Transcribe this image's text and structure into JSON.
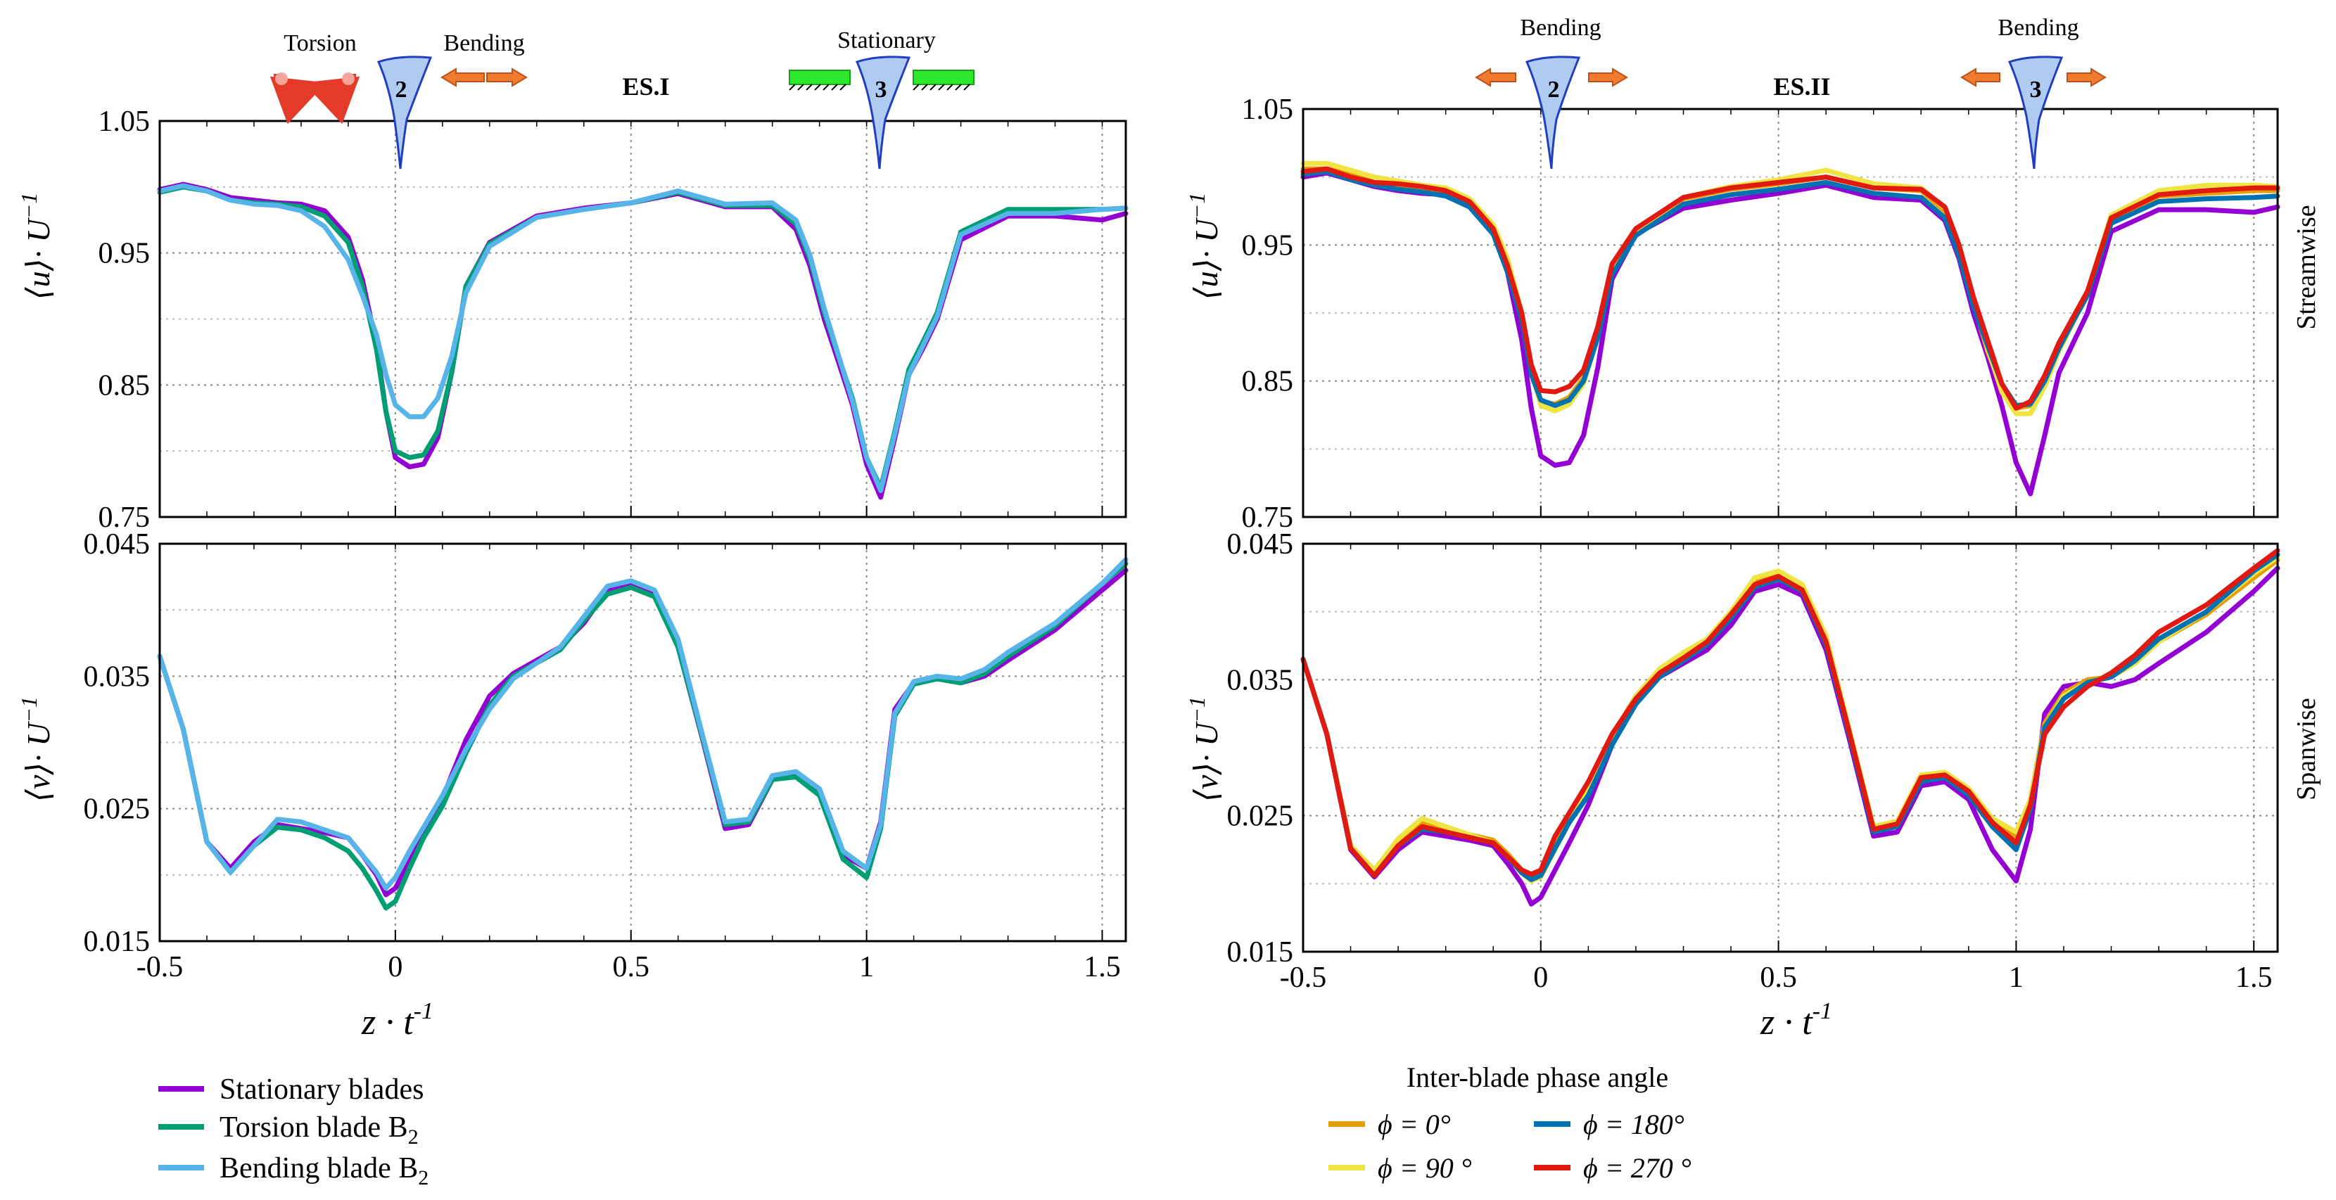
{
  "colors": {
    "stationary": "#9400D3",
    "torsion": "#009E73",
    "bending": "#56B4E9",
    "phi0": "#E69F00",
    "phi90": "#F0E442",
    "phi180": "#0072B2",
    "phi270": "#E01A10",
    "blade_fill": "#AFCBF2",
    "blade_edge": "#1F3FBF",
    "arrow": "#F07A2E",
    "ground": "#2EE82E"
  },
  "annotations": {
    "left_header": "ES.I",
    "right_header": "ES.II",
    "torsion_label": "Torsion",
    "bending_label_left": "Bending",
    "stationary_label": "Stationary",
    "bending_label_right_1": "Bending",
    "bending_label_right_2": "Bending",
    "blade_2": "2",
    "blade_3": "3",
    "streamwise": "Streamwise",
    "spanwise": "Spanwise"
  },
  "axes": {
    "ylabel_u_main": "⟨u⟩· U",
    "ylabel_u_sup": "−1",
    "ylabel_v_main": "⟨v⟩· U",
    "ylabel_v_sup": "−1",
    "xlabel_main": "z · t",
    "xlabel_sup": "-1",
    "u_ticks": [
      "1.05",
      "0.95",
      "0.85",
      "0.75"
    ],
    "v_ticks": [
      "0.045",
      "0.035",
      "0.025",
      "0.015"
    ],
    "x_ticks": [
      "-0.5",
      "0",
      "0.5",
      "1",
      "1.5"
    ]
  },
  "legend_left": {
    "stationary": "Stationary blades",
    "torsion": "Torsion blade B",
    "torsion_sub": "2",
    "bending": "Bending blade B",
    "bending_sub": "2"
  },
  "legend_right": {
    "title": "Inter-blade phase angle",
    "phi0": "ϕ = 0°",
    "phi90": "ϕ  =  90 °",
    "phi180": "ϕ = 180°",
    "phi270": "ϕ  =  270 °"
  },
  "chart_data": [
    {
      "id": "es1_u",
      "type": "line",
      "title": "ES.I",
      "xlabel": "z · t^-1",
      "ylabel": "⟨u⟩· U^-1",
      "xlim": [
        -0.5,
        1.55
      ],
      "ylim": [
        0.75,
        1.05
      ],
      "grid": true,
      "x": [
        -0.5,
        -0.45,
        -0.4,
        -0.35,
        -0.3,
        -0.25,
        -0.2,
        -0.15,
        -0.1,
        -0.07,
        -0.04,
        -0.02,
        0.0,
        0.03,
        0.06,
        0.09,
        0.12,
        0.15,
        0.2,
        0.3,
        0.4,
        0.5,
        0.6,
        0.7,
        0.8,
        0.85,
        0.88,
        0.91,
        0.94,
        0.97,
        1.0,
        1.03,
        1.06,
        1.09,
        1.12,
        1.15,
        1.2,
        1.3,
        1.4,
        1.5,
        1.55
      ],
      "series": [
        {
          "name": "Stationary blades",
          "values": [
            0.998,
            1.002,
            0.998,
            0.992,
            0.99,
            0.988,
            0.987,
            0.982,
            0.962,
            0.93,
            0.88,
            0.83,
            0.795,
            0.788,
            0.79,
            0.81,
            0.86,
            0.925,
            0.958,
            0.978,
            0.984,
            0.988,
            0.995,
            0.985,
            0.985,
            0.968,
            0.94,
            0.9,
            0.868,
            0.835,
            0.79,
            0.765,
            0.81,
            0.858,
            0.878,
            0.9,
            0.96,
            0.978,
            0.978,
            0.975,
            0.98
          ]
        },
        {
          "name": "Torsion blade B2",
          "values": [
            0.996,
            1.0,
            0.997,
            0.99,
            0.988,
            0.987,
            0.985,
            0.978,
            0.958,
            0.925,
            0.877,
            0.83,
            0.8,
            0.795,
            0.797,
            0.815,
            0.86,
            0.925,
            0.957,
            0.977,
            0.983,
            0.988,
            0.996,
            0.986,
            0.986,
            0.972,
            0.945,
            0.905,
            0.872,
            0.84,
            0.795,
            0.772,
            0.815,
            0.862,
            0.883,
            0.905,
            0.966,
            0.983,
            0.983,
            0.983,
            0.984
          ]
        },
        {
          "name": "Bending blade B2",
          "values": [
            0.997,
            1.001,
            0.997,
            0.99,
            0.987,
            0.986,
            0.982,
            0.97,
            0.945,
            0.918,
            0.888,
            0.858,
            0.835,
            0.826,
            0.826,
            0.84,
            0.872,
            0.92,
            0.955,
            0.977,
            0.983,
            0.988,
            0.997,
            0.987,
            0.988,
            0.975,
            0.948,
            0.908,
            0.873,
            0.838,
            0.795,
            0.77,
            0.813,
            0.858,
            0.88,
            0.902,
            0.964,
            0.98,
            0.98,
            0.983,
            0.984
          ]
        }
      ]
    },
    {
      "id": "es2_u",
      "type": "line",
      "title": "ES.II",
      "xlabel": "z · t^-1",
      "ylabel": "⟨u⟩· U^-1",
      "xlim": [
        -0.5,
        1.55
      ],
      "ylim": [
        0.75,
        1.05
      ],
      "grid": true,
      "x": [
        -0.5,
        -0.45,
        -0.4,
        -0.35,
        -0.3,
        -0.25,
        -0.2,
        -0.15,
        -0.1,
        -0.07,
        -0.04,
        -0.02,
        0.0,
        0.03,
        0.06,
        0.09,
        0.12,
        0.15,
        0.2,
        0.3,
        0.4,
        0.5,
        0.6,
        0.7,
        0.8,
        0.85,
        0.88,
        0.91,
        0.94,
        0.97,
        1.0,
        1.03,
        1.06,
        1.09,
        1.12,
        1.15,
        1.2,
        1.3,
        1.4,
        1.5,
        1.55
      ],
      "series": [
        {
          "name": "Stationary blades",
          "values": [
            1.0,
            1.003,
            0.998,
            0.993,
            0.99,
            0.988,
            0.987,
            0.98,
            0.96,
            0.93,
            0.88,
            0.83,
            0.795,
            0.788,
            0.79,
            0.81,
            0.86,
            0.925,
            0.958,
            0.977,
            0.983,
            0.988,
            0.994,
            0.985,
            0.983,
            0.968,
            0.94,
            0.9,
            0.868,
            0.832,
            0.79,
            0.767,
            0.81,
            0.856,
            0.878,
            0.9,
            0.96,
            0.976,
            0.976,
            0.974,
            0.978
          ]
        },
        {
          "name": "ϕ = 0°",
          "values": [
            1.006,
            1.006,
            1.002,
            0.996,
            0.994,
            0.992,
            0.99,
            0.982,
            0.962,
            0.938,
            0.9,
            0.858,
            0.835,
            0.833,
            0.838,
            0.852,
            0.885,
            0.935,
            0.962,
            0.984,
            0.991,
            0.995,
            1.0,
            0.992,
            0.99,
            0.975,
            0.948,
            0.908,
            0.872,
            0.845,
            0.83,
            0.832,
            0.85,
            0.875,
            0.895,
            0.915,
            0.968,
            0.986,
            0.988,
            0.99,
            0.99
          ]
        },
        {
          "name": "ϕ = 90°",
          "values": [
            1.01,
            1.01,
            1.005,
            1.0,
            0.997,
            0.994,
            0.992,
            0.984,
            0.965,
            0.94,
            0.9,
            0.858,
            0.832,
            0.828,
            0.833,
            0.848,
            0.882,
            0.933,
            0.96,
            0.985,
            0.993,
            0.998,
            1.005,
            0.995,
            0.992,
            0.977,
            0.95,
            0.91,
            0.874,
            0.842,
            0.826,
            0.826,
            0.846,
            0.872,
            0.893,
            0.915,
            0.972,
            0.99,
            0.994,
            0.994,
            0.993
          ]
        },
        {
          "name": "ϕ = 180°",
          "values": [
            1.002,
            1.004,
            0.998,
            0.994,
            0.991,
            0.989,
            0.986,
            0.978,
            0.958,
            0.93,
            0.895,
            0.855,
            0.836,
            0.832,
            0.836,
            0.85,
            0.882,
            0.928,
            0.957,
            0.98,
            0.987,
            0.991,
            0.996,
            0.988,
            0.985,
            0.97,
            0.942,
            0.905,
            0.876,
            0.848,
            0.832,
            0.833,
            0.85,
            0.874,
            0.894,
            0.913,
            0.966,
            0.982,
            0.984,
            0.985,
            0.986
          ]
        },
        {
          "name": "ϕ = 270°",
          "values": [
            1.004,
            1.006,
            1.0,
            0.996,
            0.995,
            0.993,
            0.99,
            0.982,
            0.962,
            0.935,
            0.9,
            0.862,
            0.843,
            0.842,
            0.846,
            0.858,
            0.89,
            0.936,
            0.962,
            0.985,
            0.992,
            0.996,
            1.0,
            0.992,
            0.991,
            0.978,
            0.95,
            0.912,
            0.88,
            0.848,
            0.83,
            0.835,
            0.854,
            0.878,
            0.897,
            0.916,
            0.97,
            0.987,
            0.99,
            0.992,
            0.992
          ]
        }
      ]
    },
    {
      "id": "es1_v",
      "type": "line",
      "title": "ES.I",
      "xlabel": "z · t^-1",
      "ylabel": "⟨v⟩· U^-1",
      "xlim": [
        -0.5,
        1.55
      ],
      "ylim": [
        0.015,
        0.045
      ],
      "grid": true,
      "x": [
        -0.5,
        -0.45,
        -0.4,
        -0.35,
        -0.3,
        -0.25,
        -0.2,
        -0.15,
        -0.1,
        -0.07,
        -0.04,
        -0.02,
        0.0,
        0.03,
        0.06,
        0.1,
        0.15,
        0.2,
        0.25,
        0.3,
        0.35,
        0.4,
        0.45,
        0.5,
        0.55,
        0.6,
        0.65,
        0.7,
        0.75,
        0.8,
        0.85,
        0.9,
        0.95,
        1.0,
        1.03,
        1.06,
        1.1,
        1.15,
        1.2,
        1.25,
        1.3,
        1.4,
        1.5,
        1.55
      ],
      "series": [
        {
          "name": "Stationary blades",
          "values": [
            0.0365,
            0.031,
            0.0225,
            0.0205,
            0.0225,
            0.0238,
            0.0235,
            0.0232,
            0.0228,
            0.0215,
            0.02,
            0.0185,
            0.019,
            0.021,
            0.023,
            0.0258,
            0.0302,
            0.0335,
            0.0352,
            0.0362,
            0.0372,
            0.039,
            0.0415,
            0.042,
            0.0412,
            0.0372,
            0.0305,
            0.0235,
            0.0238,
            0.0272,
            0.0275,
            0.0262,
            0.0215,
            0.0205,
            0.024,
            0.0325,
            0.0345,
            0.0348,
            0.0345,
            0.035,
            0.0362,
            0.0385,
            0.0415,
            0.043
          ]
        },
        {
          "name": "Torsion blade B2",
          "values": [
            0.0365,
            0.031,
            0.0225,
            0.0202,
            0.0222,
            0.0236,
            0.0234,
            0.0228,
            0.0218,
            0.0205,
            0.0188,
            0.0175,
            0.018,
            0.0205,
            0.0228,
            0.0252,
            0.0292,
            0.0328,
            0.035,
            0.036,
            0.037,
            0.0392,
            0.0412,
            0.0417,
            0.041,
            0.0372,
            0.0306,
            0.0238,
            0.024,
            0.0272,
            0.0274,
            0.026,
            0.0212,
            0.0198,
            0.0235,
            0.032,
            0.0344,
            0.0348,
            0.0345,
            0.0352,
            0.0365,
            0.0388,
            0.042,
            0.0435
          ]
        },
        {
          "name": "Bending blade B2",
          "values": [
            0.0365,
            0.031,
            0.0225,
            0.0202,
            0.0222,
            0.0242,
            0.024,
            0.0234,
            0.0228,
            0.0215,
            0.0202,
            0.019,
            0.0198,
            0.0218,
            0.0236,
            0.026,
            0.0295,
            0.0325,
            0.0348,
            0.036,
            0.0372,
            0.0395,
            0.0418,
            0.0422,
            0.0415,
            0.0378,
            0.0308,
            0.024,
            0.0242,
            0.0275,
            0.0278,
            0.0265,
            0.0218,
            0.0205,
            0.0238,
            0.0322,
            0.0346,
            0.035,
            0.0348,
            0.0355,
            0.0368,
            0.039,
            0.042,
            0.0438
          ]
        }
      ]
    },
    {
      "id": "es2_v",
      "type": "line",
      "title": "ES.II",
      "xlabel": "z · t^-1",
      "ylabel": "⟨v⟩· U^-1",
      "xlim": [
        -0.5,
        1.55
      ],
      "ylim": [
        0.015,
        0.045
      ],
      "grid": true,
      "x": [
        -0.5,
        -0.45,
        -0.4,
        -0.35,
        -0.3,
        -0.25,
        -0.2,
        -0.15,
        -0.1,
        -0.07,
        -0.04,
        -0.02,
        0.0,
        0.03,
        0.06,
        0.1,
        0.15,
        0.2,
        0.25,
        0.3,
        0.35,
        0.4,
        0.45,
        0.5,
        0.55,
        0.6,
        0.65,
        0.7,
        0.75,
        0.8,
        0.85,
        0.9,
        0.95,
        1.0,
        1.03,
        1.06,
        1.1,
        1.15,
        1.2,
        1.25,
        1.3,
        1.4,
        1.5,
        1.55
      ],
      "series": [
        {
          "name": "Stationary blades",
          "values": [
            0.0365,
            0.031,
            0.0225,
            0.0205,
            0.0225,
            0.0238,
            0.0235,
            0.0232,
            0.0228,
            0.0215,
            0.02,
            0.0185,
            0.019,
            0.021,
            0.023,
            0.0258,
            0.0302,
            0.0335,
            0.0352,
            0.0362,
            0.0372,
            0.039,
            0.0415,
            0.042,
            0.0412,
            0.0372,
            0.0305,
            0.0235,
            0.0238,
            0.0272,
            0.0275,
            0.0262,
            0.0225,
            0.0202,
            0.024,
            0.0325,
            0.0345,
            0.0348,
            0.0345,
            0.035,
            0.0362,
            0.0385,
            0.0415,
            0.0432
          ]
        },
        {
          "name": "ϕ = 0°",
          "values": [
            0.0365,
            0.031,
            0.0228,
            0.021,
            0.0232,
            0.0245,
            0.024,
            0.0236,
            0.0232,
            0.0222,
            0.021,
            0.0205,
            0.0208,
            0.0228,
            0.0248,
            0.027,
            0.0308,
            0.0338,
            0.0356,
            0.0368,
            0.0378,
            0.0398,
            0.0422,
            0.0428,
            0.0418,
            0.038,
            0.031,
            0.024,
            0.0244,
            0.0278,
            0.028,
            0.0268,
            0.0245,
            0.0235,
            0.0262,
            0.0318,
            0.034,
            0.035,
            0.0352,
            0.0362,
            0.0378,
            0.0398,
            0.0425,
            0.0438
          ]
        },
        {
          "name": "ϕ = 90°",
          "values": [
            0.0365,
            0.031,
            0.0228,
            0.021,
            0.0233,
            0.0248,
            0.0242,
            0.0236,
            0.023,
            0.022,
            0.0208,
            0.0202,
            0.0205,
            0.0225,
            0.0245,
            0.0268,
            0.0305,
            0.0338,
            0.0358,
            0.037,
            0.038,
            0.04,
            0.0425,
            0.043,
            0.042,
            0.0382,
            0.0312,
            0.0242,
            0.0246,
            0.028,
            0.0282,
            0.027,
            0.0248,
            0.0238,
            0.0262,
            0.0315,
            0.0338,
            0.0348,
            0.0352,
            0.0362,
            0.0378,
            0.04,
            0.0428,
            0.044
          ]
        },
        {
          "name": "ϕ = 180°",
          "values": [
            0.0365,
            0.031,
            0.0226,
            0.0206,
            0.0228,
            0.024,
            0.0238,
            0.0234,
            0.023,
            0.022,
            0.0208,
            0.0203,
            0.0206,
            0.0226,
            0.0245,
            0.0265,
            0.0302,
            0.0332,
            0.0352,
            0.0364,
            0.0376,
            0.0395,
            0.0418,
            0.0424,
            0.0415,
            0.0376,
            0.0308,
            0.0238,
            0.0242,
            0.0275,
            0.0278,
            0.0265,
            0.0242,
            0.0225,
            0.0255,
            0.0315,
            0.0336,
            0.0348,
            0.0352,
            0.0364,
            0.038,
            0.04,
            0.043,
            0.0442
          ]
        },
        {
          "name": "ϕ = 270°",
          "values": [
            0.0365,
            0.031,
            0.0226,
            0.0206,
            0.0228,
            0.0242,
            0.0238,
            0.0234,
            0.023,
            0.022,
            0.021,
            0.0207,
            0.021,
            0.0235,
            0.0252,
            0.0275,
            0.031,
            0.0336,
            0.0355,
            0.0366,
            0.0378,
            0.0398,
            0.042,
            0.0426,
            0.0416,
            0.0378,
            0.031,
            0.024,
            0.0244,
            0.0278,
            0.028,
            0.0268,
            0.0245,
            0.023,
            0.0258,
            0.031,
            0.033,
            0.0345,
            0.0355,
            0.0368,
            0.0385,
            0.0405,
            0.0432,
            0.0445
          ]
        }
      ]
    }
  ]
}
